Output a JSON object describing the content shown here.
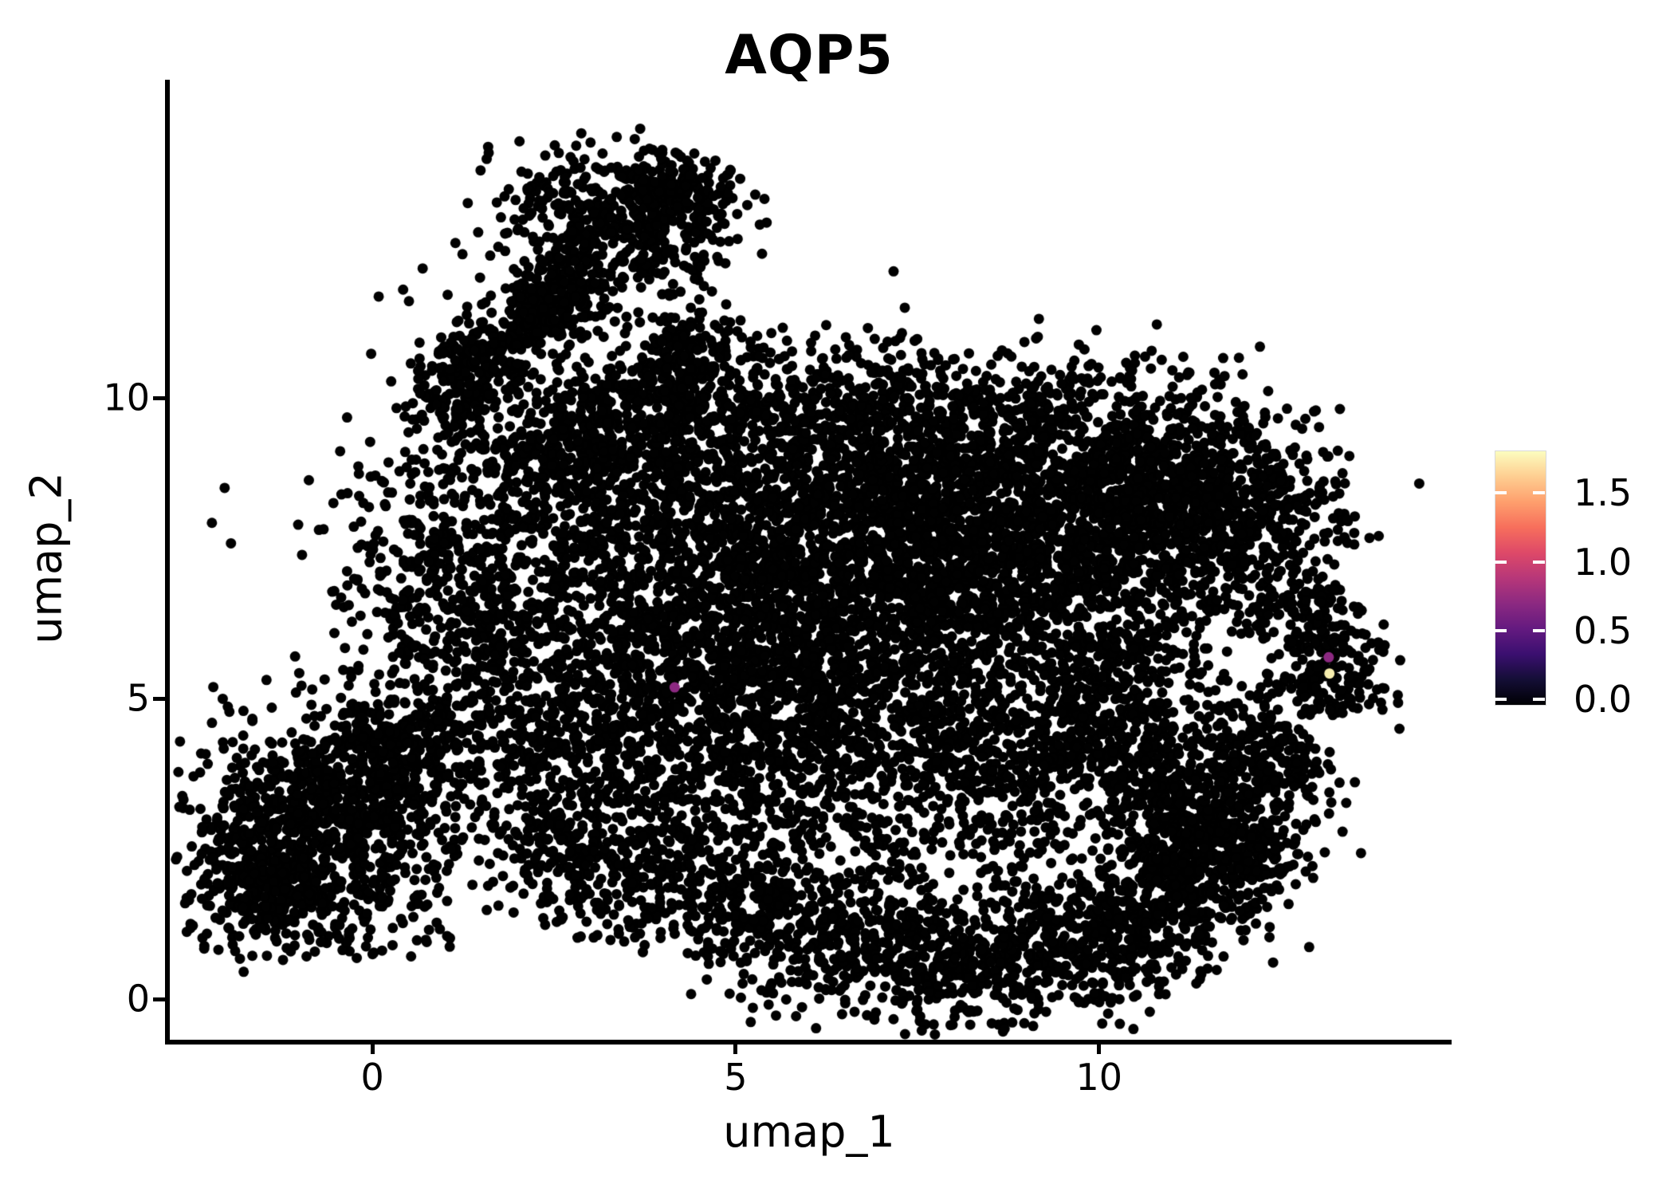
{
  "page": {
    "background": "#ffffff"
  },
  "chart_data": {
    "type": "scatter",
    "title": "AQP5",
    "xlabel": "umap_1",
    "ylabel": "umap_2",
    "x_ticks": [
      "0",
      "5",
      "10"
    ],
    "x_tick_values": [
      0,
      5,
      10
    ],
    "y_ticks": [
      "0",
      "5",
      "10"
    ],
    "y_tick_values": [
      0,
      5,
      10
    ],
    "xlim": [
      -2.82,
      14.84
    ],
    "ylim": [
      -0.7,
      15.3
    ],
    "grid": false,
    "legend_position": "right",
    "point_color": "#010101",
    "point_radius_px": 6.5,
    "colorbar": {
      "colormap": "magma",
      "vmin": 0.0,
      "vmax": 1.81,
      "tick_labels": [
        "1.5",
        "1.0",
        "0.5",
        "0.0"
      ],
      "tick_values": [
        1.5,
        1.0,
        0.5,
        0.0
      ],
      "gradient_stops_bottom_to_top": [
        "#000004",
        "#140e36",
        "#3b0f70",
        "#641a80",
        "#8c2981",
        "#b73779",
        "#de4968",
        "#f76f5c",
        "#fe9f6d",
        "#fece91",
        "#fcfdbf"
      ]
    },
    "highlighted_points": [
      {
        "x": 4.16,
        "y": 5.19,
        "value": 0.85,
        "color": "#8c2981"
      },
      {
        "x": 13.16,
        "y": 5.69,
        "value": 0.9,
        "color": "#8c2981"
      },
      {
        "x": 13.17,
        "y": 5.42,
        "value": 1.75,
        "color": "#f6edae"
      }
    ],
    "density_blobs": [
      {
        "type": "strip",
        "x1": 1.3,
        "y1": 10.4,
        "x2": 3.0,
        "y2": 12.1,
        "w": 0.35,
        "n": 330
      },
      {
        "type": "gauss",
        "cx": 3.35,
        "cy": 13.0,
        "sx": 0.8,
        "sy": 0.6,
        "n": 450
      },
      {
        "type": "gauss",
        "cx": 4.15,
        "cy": 13.45,
        "sx": 0.4,
        "sy": 0.3,
        "n": 130
      },
      {
        "type": "gauss",
        "cx": 1.15,
        "cy": 10.1,
        "sx": 0.3,
        "sy": 0.45,
        "n": 120
      },
      {
        "type": "strip",
        "x1": 3.75,
        "y1": 9.9,
        "x2": 4.55,
        "y2": 11.35,
        "w": 0.3,
        "n": 190
      },
      {
        "type": "strip",
        "x1": 2.3,
        "y1": 8.4,
        "x2": 3.1,
        "y2": 10.0,
        "w": 0.5,
        "n": 170
      },
      {
        "type": "gauss",
        "cx": 2.7,
        "cy": 11.4,
        "sx": 1.1,
        "sy": 1.1,
        "n": 120
      },
      {
        "type": "gauss",
        "cx": 3.5,
        "cy": 9.3,
        "sx": 0.9,
        "sy": 0.65,
        "n": 140
      },
      {
        "type": "gauss",
        "cx": 7.6,
        "cy": 7.6,
        "sx": 1.8,
        "sy": 1.3,
        "n": 1800
      },
      {
        "type": "gauss",
        "cx": 5.6,
        "cy": 6.4,
        "sx": 1.6,
        "sy": 1.5,
        "n": 1100
      },
      {
        "type": "gauss",
        "cx": 3.4,
        "cy": 6.6,
        "sx": 1.5,
        "sy": 1.6,
        "n": 800
      },
      {
        "type": "gauss",
        "cx": 1.2,
        "cy": 6.9,
        "sx": 0.9,
        "sy": 1.3,
        "n": 500
      },
      {
        "type": "gauss",
        "cx": 9.7,
        "cy": 7.9,
        "sx": 1.3,
        "sy": 1.1,
        "n": 700
      },
      {
        "type": "gauss",
        "cx": 6.3,
        "cy": 8.9,
        "sx": 2.2,
        "sy": 0.8,
        "n": 500
      },
      {
        "type": "gauss",
        "cx": 4.6,
        "cy": 4.6,
        "sx": 1.5,
        "sy": 1.0,
        "n": 450
      },
      {
        "type": "gauss",
        "cx": 7.0,
        "cy": 4.4,
        "sx": 1.3,
        "sy": 0.9,
        "n": 400
      },
      {
        "type": "gauss",
        "cx": 9.3,
        "cy": 3.9,
        "sx": 1.2,
        "sy": 1.0,
        "n": 450
      },
      {
        "type": "strip",
        "x1": 10.2,
        "y1": 9.4,
        "x2": 12.9,
        "y2": 6.9,
        "w": 0.7,
        "n": 500
      },
      {
        "type": "strip",
        "x1": 12.95,
        "y1": 6.8,
        "x2": 13.2,
        "y2": 4.7,
        "w": 0.35,
        "n": 230
      },
      {
        "type": "strip",
        "x1": 10.6,
        "y1": 2.9,
        "x2": 12.85,
        "y2": 4.35,
        "w": 0.6,
        "n": 360
      },
      {
        "type": "strip",
        "x1": 10.15,
        "y1": 3.6,
        "x2": 10.25,
        "y2": 6.1,
        "w": 0.5,
        "n": 270
      },
      {
        "type": "gauss",
        "cx": 11.5,
        "cy": 4.8,
        "sx": 0.8,
        "sy": 0.8,
        "n": 50
      },
      {
        "type": "gauss",
        "cx": 11.2,
        "cy": 8.4,
        "sx": 0.95,
        "sy": 0.75,
        "n": 320
      },
      {
        "type": "gauss",
        "cx": 8.3,
        "cy": 10.0,
        "sx": 1.8,
        "sy": 0.5,
        "n": 260
      },
      {
        "type": "gauss",
        "cx": 5.2,
        "cy": 9.9,
        "sx": 1.2,
        "sy": 0.5,
        "n": 200
      },
      {
        "type": "gauss",
        "cx": 6.5,
        "cy": 6.6,
        "sx": 3.2,
        "sy": 2.1,
        "n": 600
      },
      {
        "type": "gauss",
        "cx": -0.9,
        "cy": 2.8,
        "sx": 0.85,
        "sy": 0.95,
        "n": 620
      },
      {
        "type": "gauss",
        "cx": -1.6,
        "cy": 2.15,
        "sx": 0.45,
        "sy": 0.6,
        "n": 220
      },
      {
        "type": "gauss",
        "cx": 0.0,
        "cy": 3.7,
        "sx": 0.6,
        "sy": 0.55,
        "n": 260
      },
      {
        "type": "strip",
        "x1": 0.3,
        "y1": 4.2,
        "x2": 1.0,
        "y2": 4.85,
        "w": 0.4,
        "n": 110
      },
      {
        "type": "gauss",
        "cx": -0.5,
        "cy": 1.6,
        "sx": 0.8,
        "sy": 0.45,
        "n": 130
      },
      {
        "type": "gauss",
        "cx": 1.8,
        "cy": 2.6,
        "sx": 0.8,
        "sy": 0.6,
        "n": 80
      },
      {
        "type": "gauss",
        "cx": 2.6,
        "cy": 3.8,
        "sx": 1.0,
        "sy": 0.8,
        "n": 240
      },
      {
        "type": "strip",
        "x1": 2.2,
        "y1": 2.7,
        "x2": 4.6,
        "y2": 1.9,
        "w": 0.55,
        "n": 300
      },
      {
        "type": "strip",
        "x1": 4.6,
        "y1": 1.9,
        "x2": 7.0,
        "y2": 0.62,
        "w": 0.6,
        "n": 400
      },
      {
        "type": "strip",
        "x1": 7.0,
        "y1": 0.6,
        "x2": 9.4,
        "y2": 0.5,
        "w": 0.55,
        "n": 400
      },
      {
        "type": "strip",
        "x1": 9.4,
        "y1": 0.52,
        "x2": 11.3,
        "y2": 1.6,
        "w": 0.6,
        "n": 400
      },
      {
        "type": "strip",
        "x1": 11.3,
        "y1": 1.6,
        "x2": 12.05,
        "y2": 2.9,
        "w": 0.5,
        "n": 260
      },
      {
        "type": "gauss",
        "cx": 8.2,
        "cy": 1.9,
        "sx": 2.2,
        "sy": 0.7,
        "n": 220
      },
      {
        "type": "gauss",
        "cx": 5.6,
        "cy": 2.8,
        "sx": 1.5,
        "sy": 0.8,
        "n": 170
      },
      {
        "type": "gauss",
        "cx": 11.6,
        "cy": 2.9,
        "sx": 0.7,
        "sy": 0.6,
        "n": 200
      }
    ]
  }
}
